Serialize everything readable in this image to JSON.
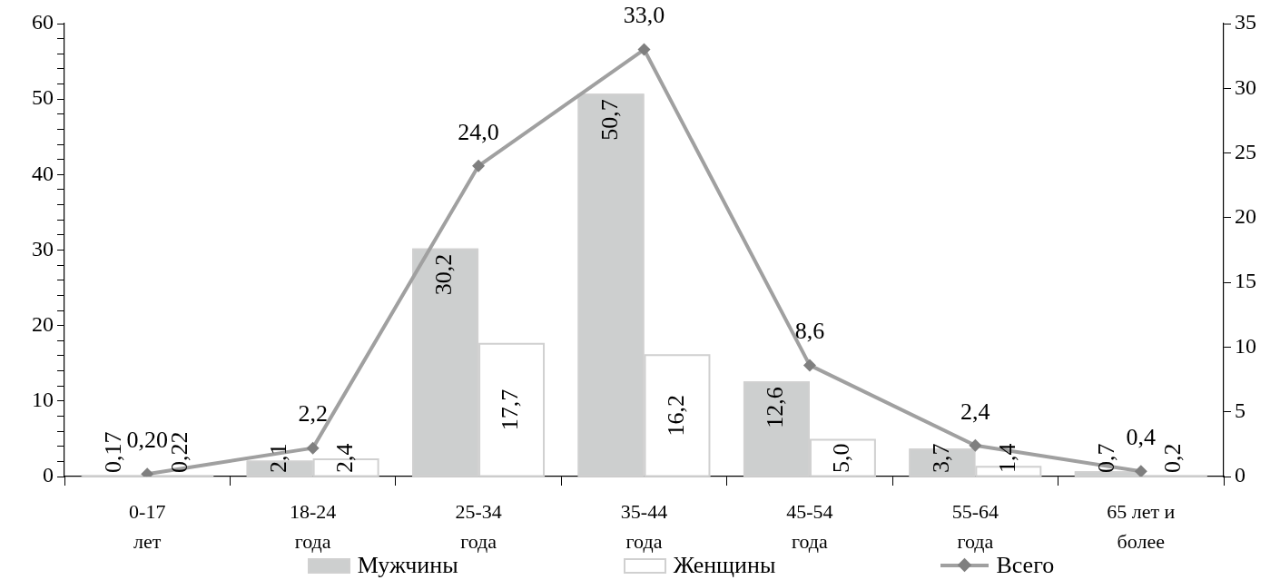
{
  "chart_data": {
    "type": "bar",
    "categories": [
      "0-17 лет",
      "18-24 года",
      "25-34 года",
      "35-44 года",
      "45-54 года",
      "55-64 года",
      "65 лет и более"
    ],
    "series": [
      {
        "name": "Мужчины",
        "color": "#cdcfcf",
        "values": [
          0.17,
          2.1,
          30.2,
          50.7,
          12.6,
          3.7,
          0.7
        ],
        "value_labels": [
          "0,17",
          "2,1",
          "30,2",
          "50,7",
          "12,6",
          "3,7",
          "0,7"
        ]
      },
      {
        "name": "Женщины",
        "color": "#ffffff",
        "values": [
          0.22,
          2.4,
          17.7,
          16.2,
          5.0,
          1.4,
          0.2
        ],
        "value_labels": [
          "0,22",
          "2,4",
          "17,7",
          "16,2",
          "5,0",
          "1,4",
          "0,2"
        ]
      },
      {
        "name": "Всего",
        "type": "line",
        "axis": "y2",
        "color": "#a0a0a0",
        "marker": "diamond",
        "values": [
          0.2,
          2.2,
          24.0,
          33.0,
          8.6,
          2.4,
          0.4
        ],
        "value_labels": [
          "0,20",
          "2,2",
          "24,0",
          "33,0",
          "8,6",
          "2,4",
          "0,4"
        ]
      }
    ],
    "ylim": [
      0,
      60
    ],
    "yticks": [
      0,
      {
        "value": 2,
        "label": null
      },
      {
        "value": 4,
        "label": null
      },
      {
        "value": 6,
        "label": null
      },
      {
        "value": 8,
        "label": null
      },
      10,
      {
        "value": 12,
        "label": null
      },
      {
        "value": 14,
        "label": null
      },
      {
        "value": 16,
        "label": null
      },
      {
        "value": 18,
        "label": null
      },
      20,
      {
        "value": 22,
        "label": null
      },
      {
        "value": 24,
        "label": null
      },
      {
        "value": 26,
        "label": null
      },
      {
        "value": 28,
        "label": null
      },
      30,
      {
        "value": 32,
        "label": null
      },
      {
        "value": 34,
        "label": null
      },
      {
        "value": 36,
        "label": null
      },
      {
        "value": 38,
        "label": null
      },
      40,
      {
        "value": 42,
        "label": null
      },
      {
        "value": 44,
        "label": null
      },
      {
        "value": 46,
        "label": null
      },
      {
        "value": 48,
        "label": null
      },
      50,
      {
        "value": 52,
        "label": null
      },
      {
        "value": 54,
        "label": null
      },
      {
        "value": 56,
        "label": null
      },
      {
        "value": 58,
        "label": null
      },
      60
    ],
    "y2lim": [
      0,
      35
    ],
    "y2ticks": [
      0,
      5,
      10,
      15,
      20,
      25,
      30,
      35
    ],
    "legend": "bottom"
  }
}
